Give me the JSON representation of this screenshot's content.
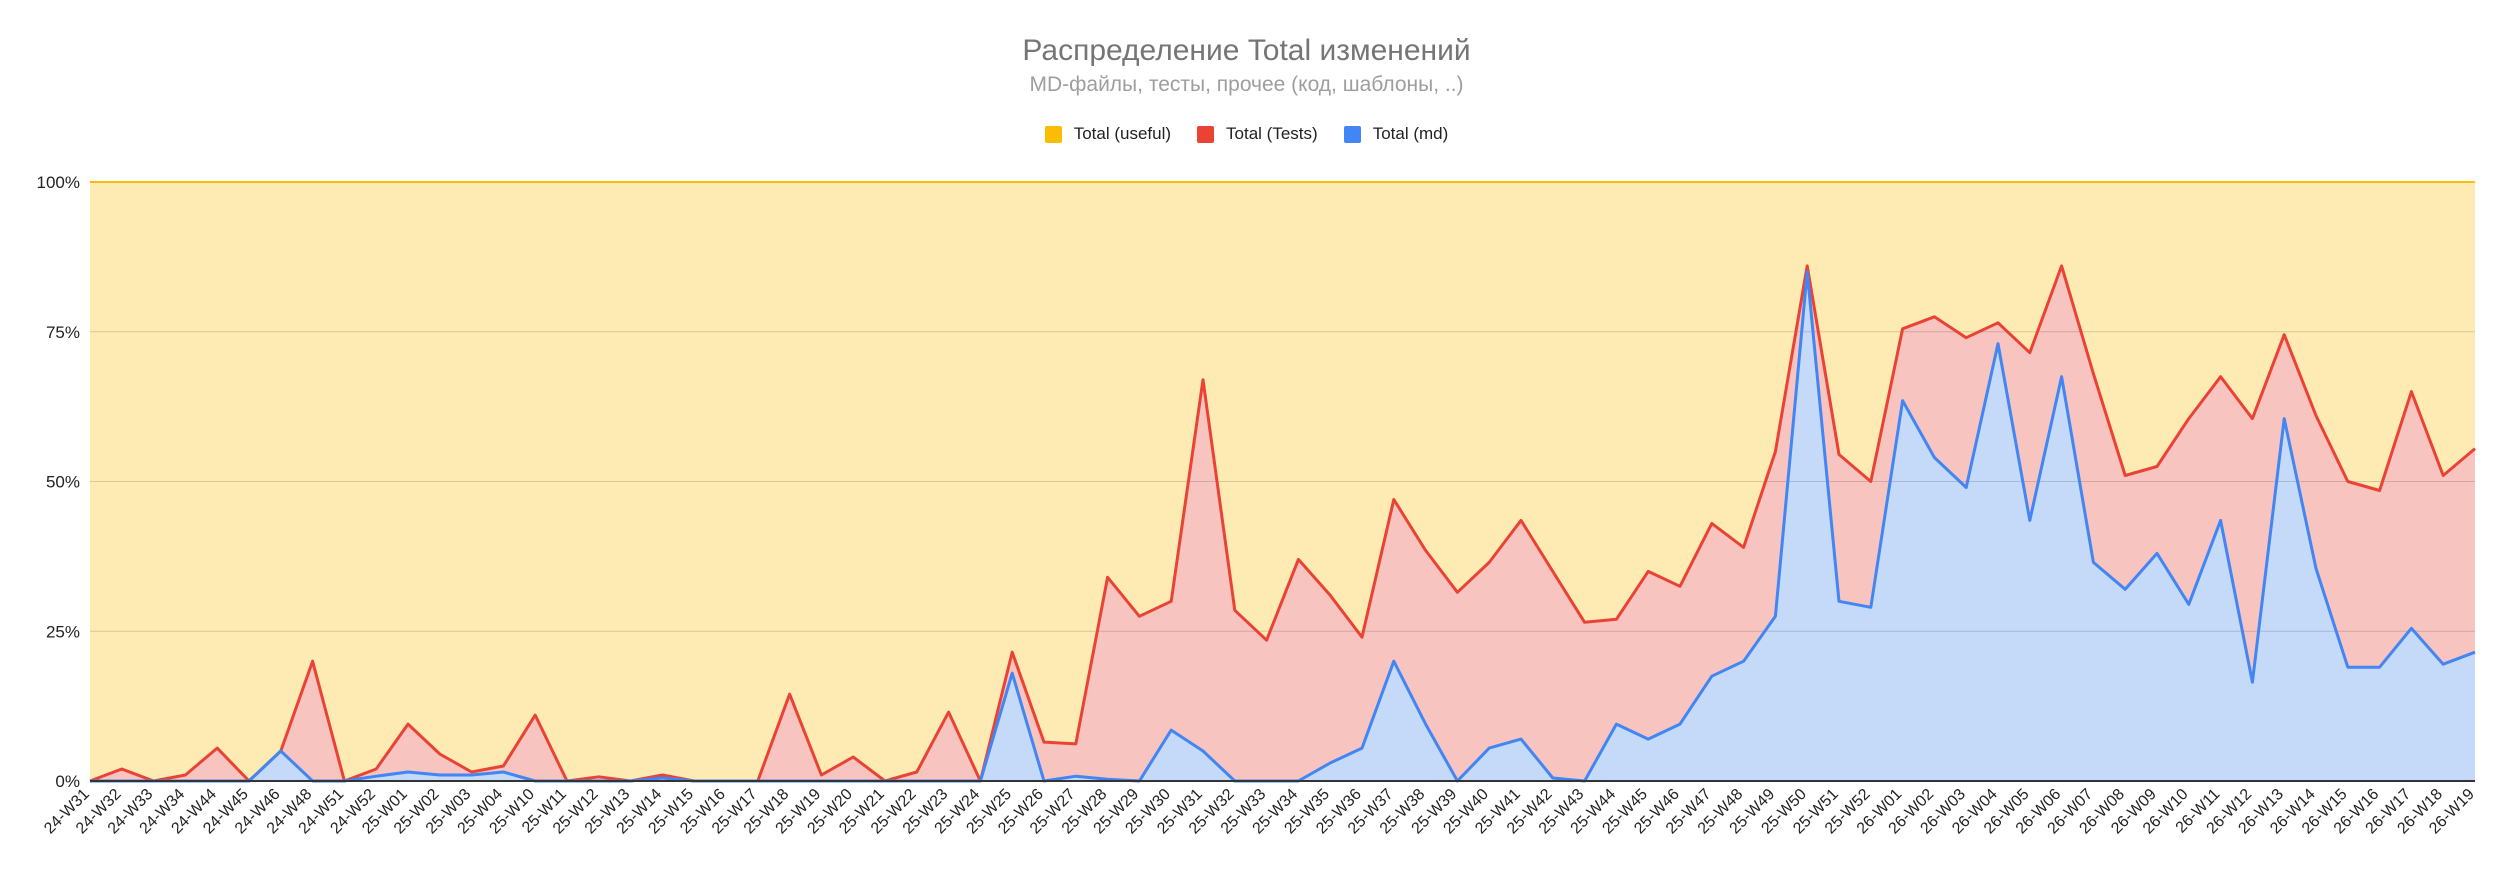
{
  "chart_data": {
    "type": "area",
    "stacked": "percent",
    "title": "Распределение Total изменений",
    "subtitle": "MD-файлы, тесты, прочее (код, шаблоны, ..)",
    "xlabel": "",
    "ylabel": "",
    "ylim": [
      0,
      100
    ],
    "yticks": [
      "0%",
      "25%",
      "50%",
      "75%",
      "100%"
    ],
    "grid": true,
    "legend_position": "top",
    "categories": [
      "24-W31",
      "24-W32",
      "24-W33",
      "24-W34",
      "24-W44",
      "24-W45",
      "24-W46",
      "24-W48",
      "24-W51",
      "24-W52",
      "25-W01",
      "25-W02",
      "25-W03",
      "25-W04",
      "25-W10",
      "25-W11",
      "25-W12",
      "25-W13",
      "25-W14",
      "25-W15",
      "25-W16",
      "25-W17",
      "25-W18",
      "25-W19",
      "25-W20",
      "25-W21",
      "25-W22",
      "25-W23",
      "25-W24",
      "25-W25",
      "25-W26",
      "25-W27",
      "25-W28",
      "25-W29",
      "25-W30",
      "25-W31",
      "25-W32",
      "25-W33",
      "25-W34",
      "25-W35",
      "25-W36",
      "25-W37",
      "25-W38",
      "25-W39",
      "25-W40",
      "25-W41",
      "25-W42",
      "25-W43",
      "25-W44",
      "25-W45",
      "25-W46",
      "25-W47",
      "25-W48",
      "25-W49",
      "25-W50",
      "25-W51",
      "25-W52",
      "26-W01",
      "26-W02",
      "26-W03",
      "26-W04",
      "26-W05",
      "26-W06",
      "26-W07",
      "26-W08",
      "26-W09",
      "26-W10",
      "26-W11",
      "26-W12",
      "26-W13",
      "26-W14",
      "26-W15",
      "26-W16",
      "26-W17",
      "26-W18",
      "26-W19"
    ],
    "series": [
      {
        "name": "Total (useful)",
        "color": "#fbbc04"
      },
      {
        "name": "Total (Tests)",
        "color": "#ea4335",
        "cumulative_values": [
          0,
          2,
          0,
          1,
          5.5,
          0,
          5,
          20,
          0,
          2,
          9.5,
          4.5,
          1.5,
          2.5,
          11,
          0,
          0.7,
          0,
          1,
          0,
          0,
          0,
          14.5,
          1,
          4,
          0,
          1.5,
          11.5,
          0,
          21.5,
          6.5,
          6.2,
          34,
          27.5,
          30,
          67,
          28.5,
          23.5,
          37,
          31,
          24,
          47,
          38.5,
          31.5,
          36.5,
          43.5,
          35,
          26.5,
          27,
          35,
          32.5,
          43,
          39,
          55,
          86,
          54.5,
          50,
          75.5,
          77.5,
          74,
          76.5,
          71.5,
          86,
          68,
          51,
          52.5,
          60.5,
          67.5,
          60.5,
          74.5,
          61,
          50,
          48.5,
          65,
          51,
          55.5
        ]
      },
      {
        "name": "Total (md)",
        "color": "#4285f4",
        "values": [
          0,
          0,
          0,
          0,
          0,
          0,
          5,
          0,
          0,
          0.8,
          1.5,
          1,
          1,
          1.5,
          0,
          0,
          0,
          0,
          0.5,
          0,
          0,
          0,
          0,
          0,
          0,
          0,
          0,
          0,
          0,
          18,
          0,
          0.8,
          0.3,
          0,
          8.5,
          5,
          0,
          0,
          0,
          3,
          5.5,
          20,
          9.5,
          0,
          5.5,
          7,
          0.5,
          0,
          9.5,
          7,
          9.5,
          17.5,
          20,
          27.5,
          85,
          30,
          29,
          63.5,
          54,
          49,
          73,
          43.5,
          67.5,
          36.5,
          32,
          38,
          29.5,
          43.5,
          16.5,
          60.5,
          35.5,
          19,
          19,
          25.5,
          19.5,
          21.5
        ]
      }
    ]
  }
}
